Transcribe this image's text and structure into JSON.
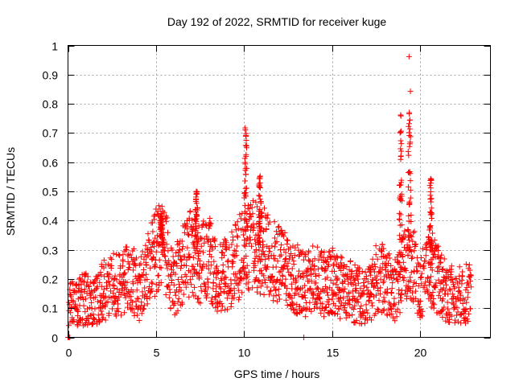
{
  "chart_data": {
    "type": "scatter",
    "title": "Day 192 of 2022, SRMTID for receiver kuge",
    "xlabel": "GPS time / hours",
    "ylabel": "SRMTID / TECUs",
    "xlim": [
      0,
      24
    ],
    "ylim": [
      0,
      1
    ],
    "xticks": [
      0,
      5,
      10,
      15,
      20
    ],
    "yticks": [
      0,
      0.1,
      0.2,
      0.3,
      0.4,
      0.5,
      0.6,
      0.7,
      0.8,
      0.9,
      1
    ],
    "grid": true,
    "marker": "+",
    "marker_color": "#ff0000",
    "series": [
      {
        "name": "SRMTID",
        "trend_x": [
          0.0,
          0.5,
          1.0,
          1.5,
          2.0,
          2.5,
          3.0,
          3.5,
          4.0,
          4.5,
          5.0,
          5.5,
          6.0,
          6.5,
          7.0,
          7.5,
          8.0,
          8.5,
          9.0,
          9.5,
          10.0,
          10.5,
          11.0,
          11.5,
          12.0,
          12.5,
          13.0,
          13.5,
          14.0,
          14.5,
          15.0,
          15.5,
          16.0,
          16.5,
          17.0,
          17.5,
          18.0,
          18.5,
          19.0,
          19.5,
          20.0,
          20.5,
          21.0,
          21.5,
          22.0,
          22.5,
          22.9
        ],
        "trend_y": [
          0.1,
          0.11,
          0.13,
          0.11,
          0.16,
          0.18,
          0.18,
          0.22,
          0.16,
          0.22,
          0.3,
          0.3,
          0.18,
          0.25,
          0.3,
          0.25,
          0.28,
          0.2,
          0.22,
          0.25,
          0.3,
          0.32,
          0.3,
          0.28,
          0.25,
          0.22,
          0.2,
          0.18,
          0.2,
          0.18,
          0.2,
          0.17,
          0.16,
          0.14,
          0.14,
          0.2,
          0.2,
          0.15,
          0.22,
          0.28,
          0.16,
          0.25,
          0.2,
          0.15,
          0.14,
          0.15,
          0.15
        ],
        "spikes": [
          {
            "x": 10.1,
            "peak": 0.73
          },
          {
            "x": 10.9,
            "peak": 0.56
          },
          {
            "x": 18.9,
            "peak": 0.8
          },
          {
            "x": 19.4,
            "peak": 0.99
          },
          {
            "x": 20.6,
            "peak": 0.56
          },
          {
            "x": 7.3,
            "peak": 0.5
          },
          {
            "x": 5.3,
            "peak": 0.43
          }
        ],
        "zero_points_x": [
          0.0,
          0.05,
          0.1,
          13.4
        ]
      }
    ]
  }
}
